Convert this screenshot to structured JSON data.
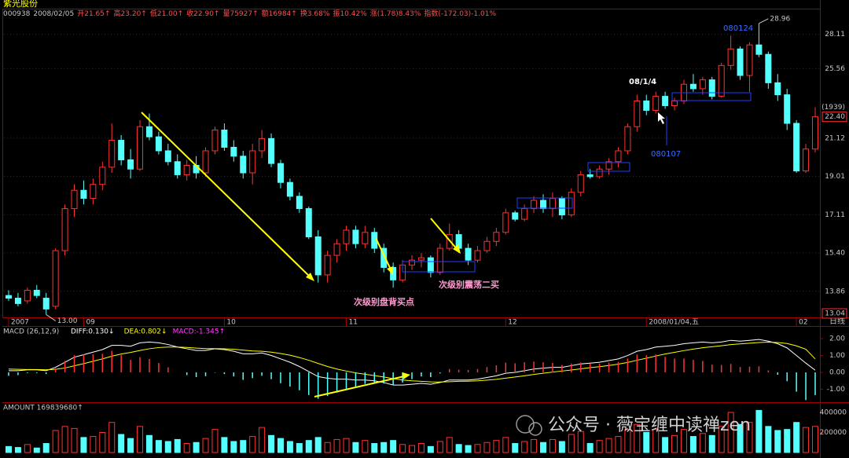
{
  "header": {
    "title": "紫光股份",
    "info": [
      "000938",
      "2008/02/05",
      "开21.65↑",
      "高23.20↑",
      "低21.00↑",
      "收22.90↑",
      "量75927↑",
      "额16984↑",
      "换3.68%",
      "振10.42%",
      "涨(1.78)8.43%",
      "指数(-172.03)-1.01%"
    ]
  },
  "chart_data": [
    {
      "type": "candlestick",
      "log_scale": true,
      "grid": true,
      "up_color": "#ff3232",
      "down_color": "#54ffff",
      "ylim": [
        12.9,
        30.1
      ],
      "yticks": [
        13.86,
        {
          "value": 15.4,
          "label": "15.40"
        },
        17.11,
        19.01,
        21.12,
        25.56,
        28.11
      ],
      "candles": [
        [
          13.7,
          13.9,
          13.5,
          13.6
        ],
        [
          13.6,
          13.8,
          13.3,
          13.4
        ],
        [
          13.5,
          14.0,
          13.4,
          13.9
        ],
        [
          13.9,
          14.1,
          13.6,
          13.7
        ],
        [
          13.6,
          13.8,
          13.0,
          13.2
        ],
        [
          13.3,
          15.6,
          13.2,
          15.5
        ],
        [
          15.5,
          17.6,
          15.3,
          17.4
        ],
        [
          17.4,
          18.6,
          17.0,
          18.3
        ],
        [
          18.3,
          18.8,
          17.6,
          17.9
        ],
        [
          17.9,
          18.9,
          17.6,
          18.6
        ],
        [
          18.6,
          19.8,
          18.3,
          19.5
        ],
        [
          19.5,
          22.0,
          19.2,
          21.0
        ],
        [
          21.0,
          21.3,
          19.6,
          19.9
        ],
        [
          19.9,
          20.5,
          18.9,
          19.4
        ],
        [
          19.4,
          22.2,
          19.3,
          21.8
        ],
        [
          21.8,
          22.6,
          21.0,
          21.2
        ],
        [
          21.2,
          21.5,
          20.2,
          20.4
        ],
        [
          20.4,
          20.8,
          19.6,
          19.8
        ],
        [
          19.8,
          20.2,
          18.9,
          19.1
        ],
        [
          19.1,
          19.9,
          18.8,
          19.6
        ],
        [
          19.6,
          20.1,
          18.9,
          19.2
        ],
        [
          19.2,
          20.6,
          19.0,
          20.4
        ],
        [
          20.4,
          21.8,
          20.2,
          21.6
        ],
        [
          21.6,
          22.0,
          20.4,
          20.6
        ],
        [
          20.6,
          21.0,
          19.8,
          20.1
        ],
        [
          20.1,
          20.4,
          18.9,
          19.2
        ],
        [
          19.2,
          20.8,
          18.6,
          20.4
        ],
        [
          20.4,
          21.6,
          20.0,
          21.1
        ],
        [
          21.1,
          21.4,
          19.5,
          19.7
        ],
        [
          19.7,
          19.9,
          18.4,
          18.7
        ],
        [
          18.7,
          18.9,
          17.8,
          18.0
        ],
        [
          18.0,
          18.2,
          17.2,
          17.4
        ],
        [
          17.4,
          17.5,
          16.0,
          16.1
        ],
        [
          16.1,
          16.4,
          14.2,
          14.5
        ],
        [
          14.5,
          15.5,
          14.2,
          15.3
        ],
        [
          15.3,
          16.0,
          15.0,
          15.8
        ],
        [
          15.8,
          16.6,
          15.5,
          16.4
        ],
        [
          16.4,
          16.6,
          15.6,
          15.8
        ],
        [
          15.8,
          16.6,
          15.6,
          16.3
        ],
        [
          16.3,
          16.5,
          15.4,
          15.6
        ],
        [
          15.6,
          15.8,
          14.6,
          14.8
        ],
        [
          14.8,
          15.0,
          14.0,
          14.3
        ],
        [
          14.3,
          15.1,
          14.2,
          14.9
        ],
        [
          14.9,
          15.3,
          14.7,
          15.1
        ],
        [
          15.1,
          15.4,
          14.8,
          15.2
        ],
        [
          15.2,
          15.3,
          14.4,
          14.6
        ],
        [
          14.6,
          15.8,
          14.5,
          15.6
        ],
        [
          15.6,
          16.7,
          15.5,
          16.2
        ],
        [
          16.2,
          16.4,
          15.4,
          15.6
        ],
        [
          15.6,
          15.8,
          14.9,
          15.1
        ],
        [
          15.1,
          15.7,
          15.0,
          15.5
        ],
        [
          15.5,
          16.1,
          15.4,
          15.9
        ],
        [
          15.9,
          16.5,
          15.7,
          16.3
        ],
        [
          16.3,
          17.4,
          16.2,
          17.2
        ],
        [
          17.2,
          17.3,
          16.8,
          16.9
        ],
        [
          16.9,
          17.6,
          16.8,
          17.4
        ],
        [
          17.4,
          18.0,
          17.2,
          17.8
        ],
        [
          17.8,
          18.1,
          17.2,
          17.4
        ],
        [
          17.4,
          18.2,
          17.0,
          17.9
        ],
        [
          17.9,
          18.0,
          16.9,
          17.1
        ],
        [
          17.1,
          18.4,
          17.0,
          18.2
        ],
        [
          18.2,
          19.3,
          18.0,
          19.1
        ],
        [
          19.1,
          19.4,
          18.9,
          19.0
        ],
        [
          19.0,
          19.6,
          18.9,
          19.4
        ],
        [
          19.4,
          20.0,
          19.1,
          19.8
        ],
        [
          19.8,
          20.6,
          19.5,
          20.4
        ],
        [
          20.4,
          22.0,
          20.2,
          21.8
        ],
        [
          21.8,
          23.8,
          21.5,
          23.4
        ],
        [
          23.4,
          23.8,
          22.5,
          22.8
        ],
        [
          22.8,
          24.0,
          22.6,
          23.7
        ],
        [
          23.7,
          24.0,
          22.9,
          23.1
        ],
        [
          23.1,
          23.6,
          22.8,
          23.4
        ],
        [
          23.4,
          24.8,
          23.2,
          24.5
        ],
        [
          24.5,
          25.2,
          24.0,
          24.2
        ],
        [
          24.2,
          25.0,
          23.8,
          24.8
        ],
        [
          24.8,
          25.0,
          23.5,
          23.7
        ],
        [
          23.7,
          26.0,
          23.6,
          25.8
        ],
        [
          25.8,
          28.0,
          25.5,
          27.0
        ],
        [
          27.0,
          27.2,
          24.8,
          25.1
        ],
        [
          25.1,
          27.5,
          24.0,
          27.3
        ],
        [
          27.3,
          28.96,
          26.4,
          26.6
        ],
        [
          26.6,
          26.8,
          24.2,
          24.6
        ],
        [
          24.6,
          25.2,
          23.4,
          23.8
        ],
        [
          23.8,
          24.2,
          21.6,
          22.0
        ],
        [
          22.0,
          22.2,
          19.2,
          19.3
        ],
        [
          19.3,
          20.8,
          19.2,
          20.5
        ],
        [
          20.5,
          23.0,
          20.3,
          22.4
        ]
      ],
      "extreme_labels": [
        {
          "candle": 4,
          "field": 2,
          "label": "13.00"
        },
        {
          "candle": 80,
          "field": 1,
          "label": "28.96"
        }
      ],
      "price_labels": [
        {
          "value": 22.4,
          "label": "22.40"
        },
        13.04
      ],
      "share_label": "(1939)",
      "date_labels": [
        {
          "index": 0,
          "label": "2007"
        },
        {
          "index": 8,
          "label": "09"
        },
        {
          "index": 23,
          "label": "10"
        },
        {
          "index": 36,
          "label": "11"
        },
        {
          "index": 53,
          "label": "12"
        },
        {
          "index": 68,
          "label": "2008/01/04,五"
        },
        {
          "index": 84,
          "label": "02"
        }
      ]
    },
    {
      "type": "macd",
      "title": "MACD (26,12,9)",
      "ylim": [
        -1.72,
        2.7
      ],
      "yticks": [
        {
          "value": -1,
          "label": "-1.00"
        },
        {
          "value": 0,
          "label": "0.00"
        },
        {
          "value": 1,
          "label": "1.00"
        },
        {
          "value": 2,
          "label": "2.00"
        }
      ],
      "series": [
        {
          "name": "DIFF:0.130↓",
          "color": "#ffffff",
          "values": [
            0.1,
            0.1,
            0.15,
            0.15,
            0.1,
            0.3,
            0.6,
            0.9,
            1.05,
            1.2,
            1.35,
            1.6,
            1.6,
            1.55,
            1.75,
            1.8,
            1.75,
            1.65,
            1.5,
            1.4,
            1.3,
            1.3,
            1.4,
            1.35,
            1.25,
            1.1,
            1.1,
            1.15,
            1.0,
            0.8,
            0.6,
            0.35,
            0.05,
            -0.25,
            -0.35,
            -0.4,
            -0.4,
            -0.45,
            -0.45,
            -0.5,
            -0.6,
            -0.75,
            -0.75,
            -0.7,
            -0.65,
            -0.7,
            -0.6,
            -0.45,
            -0.45,
            -0.45,
            -0.4,
            -0.3,
            -0.2,
            -0.05,
            0.0,
            0.1,
            0.2,
            0.25,
            0.3,
            0.3,
            0.4,
            0.5,
            0.55,
            0.6,
            0.7,
            0.8,
            1.0,
            1.25,
            1.35,
            1.5,
            1.55,
            1.6,
            1.7,
            1.75,
            1.8,
            1.75,
            1.8,
            1.9,
            1.85,
            1.9,
            1.95,
            1.85,
            1.7,
            1.45,
            1.0,
            0.55,
            0.13
          ]
        },
        {
          "name": "DEA:0.802↓",
          "color": "#ffff00",
          "values": [
            0.2,
            0.18,
            0.17,
            0.17,
            0.15,
            0.18,
            0.26,
            0.39,
            0.52,
            0.66,
            0.8,
            0.96,
            1.09,
            1.18,
            1.3,
            1.4,
            1.47,
            1.5,
            1.5,
            1.48,
            1.44,
            1.41,
            1.41,
            1.4,
            1.37,
            1.32,
            1.27,
            1.25,
            1.2,
            1.12,
            1.02,
            0.88,
            0.72,
            0.53,
            0.35,
            0.2,
            0.08,
            -0.03,
            -0.11,
            -0.19,
            -0.27,
            -0.37,
            -0.45,
            -0.5,
            -0.53,
            -0.56,
            -0.57,
            -0.55,
            -0.53,
            -0.52,
            -0.5,
            -0.46,
            -0.41,
            -0.34,
            -0.27,
            -0.2,
            -0.12,
            -0.05,
            0.02,
            0.08,
            0.14,
            0.21,
            0.28,
            0.34,
            0.41,
            0.49,
            0.59,
            0.72,
            0.84,
            0.97,
            1.09,
            1.19,
            1.29,
            1.38,
            1.46,
            1.52,
            1.58,
            1.65,
            1.69,
            1.73,
            1.77,
            1.79,
            1.77,
            1.71,
            1.57,
            1.37,
            0.802
          ]
        },
        {
          "name": "MACD:-1.345↑",
          "color": "#ff40ff",
          "up_color": "#ff3232",
          "down_color": "#54ffff",
          "bars": true,
          "values": [
            -0.2,
            -0.16,
            -0.04,
            -0.04,
            -0.1,
            0.24,
            0.68,
            1.02,
            1.06,
            1.08,
            1.1,
            1.28,
            1.02,
            0.74,
            0.9,
            0.8,
            0.56,
            0.3,
            0,
            -0.16,
            -0.28,
            -0.22,
            -0.02,
            -0.1,
            -0.24,
            -0.44,
            -0.34,
            -0.2,
            -0.4,
            -0.64,
            -0.84,
            -1.06,
            -1.34,
            -1.56,
            -1.4,
            -1.2,
            -0.96,
            -0.84,
            -0.68,
            -0.62,
            -0.66,
            -0.76,
            -0.6,
            -0.4,
            -0.24,
            -0.28,
            -0.06,
            0.2,
            0.16,
            0.14,
            0.2,
            0.32,
            0.42,
            0.58,
            0.54,
            0.6,
            0.64,
            0.6,
            0.56,
            0.44,
            0.52,
            0.58,
            0.54,
            0.52,
            0.58,
            0.62,
            0.82,
            1.06,
            1.02,
            1.06,
            0.92,
            0.82,
            0.82,
            0.74,
            0.68,
            0.46,
            0.44,
            0.5,
            0.32,
            0.34,
            0.36,
            0.12,
            -0.14,
            -0.52,
            -1.14,
            -1.64,
            -1.345
          ]
        }
      ]
    },
    {
      "type": "bar",
      "title": "AMOUNT 169839680↑",
      "ylim": [
        0,
        486000
      ],
      "yticks": [
        200000,
        400000
      ],
      "values": [
        60000,
        50000,
        80000,
        45000,
        90000,
        220000,
        260000,
        240000,
        150000,
        160000,
        200000,
        300000,
        180000,
        140000,
        260000,
        170000,
        120000,
        110000,
        130000,
        90000,
        100000,
        140000,
        230000,
        150000,
        110000,
        120000,
        160000,
        250000,
        170000,
        140000,
        110000,
        90000,
        120000,
        150000,
        100000,
        130000,
        140000,
        100000,
        120000,
        90000,
        100000,
        120000,
        80000,
        70000,
        90000,
        60000,
        110000,
        150000,
        80000,
        70000,
        80000,
        100000,
        120000,
        150000,
        90000,
        110000,
        130000,
        100000,
        130000,
        110000,
        180000,
        210000,
        90000,
        120000,
        140000,
        160000,
        230000,
        280000,
        200000,
        230000,
        150000,
        170000,
        230000,
        160000,
        190000,
        170000,
        260000,
        400000,
        280000,
        300000,
        420000,
        260000,
        220000,
        230000,
        300000,
        250000,
        260000
      ]
    }
  ],
  "annotations": [
    "08/1/4",
    "080124",
    "080107",
    "次级别盘背买点",
    "次级别震荡二买"
  ],
  "period": "日线",
  "watermark": "公众号 · 薇宝缠中读禅zen"
}
